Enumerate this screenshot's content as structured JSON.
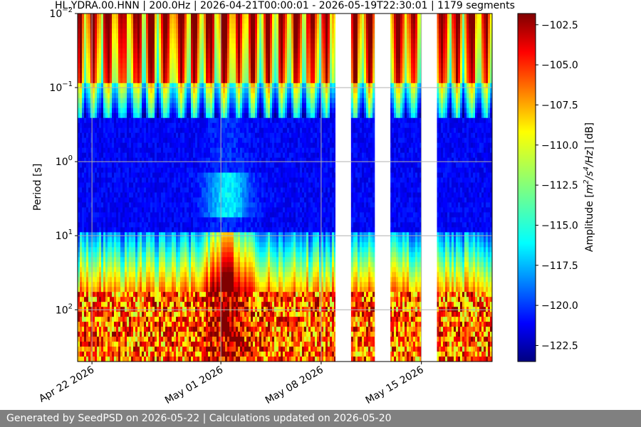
{
  "chart_data": {
    "type": "heatmap",
    "title": "HL.YDRA.00.HNN | 200.0Hz | 2026-04-21T00:00:01 - 2026-05-19T22:30:01 | 1179 segments",
    "ylabel": "Period [s]",
    "y_scale": "log",
    "y_axis_inverted": true,
    "y_range_s": [
      0.01,
      500
    ],
    "x_range": [
      "2026-04-21T00:00:01",
      "2026-05-19T22:30:01"
    ],
    "grid": true,
    "x_ticks": [
      {
        "date": "2026-04-22",
        "label": "Apr 22 2026"
      },
      {
        "date": "2026-05-01",
        "label": "May 01 2026"
      },
      {
        "date": "2026-05-08",
        "label": "May 08 2026"
      },
      {
        "date": "2026-05-15",
        "label": "May 15 2026"
      }
    ],
    "y_ticks": [
      {
        "value": 0.01,
        "base": "10",
        "exp": "−2"
      },
      {
        "value": 0.1,
        "base": "10",
        "exp": "−1"
      },
      {
        "value": 1,
        "base": "10",
        "exp": "0"
      },
      {
        "value": 10,
        "base": "10",
        "exp": "1"
      },
      {
        "value": 100,
        "base": "10",
        "exp": "2"
      }
    ],
    "colorbar": {
      "label_prefix": "Amplitude [",
      "label_unit_base": "m",
      "label_unit_exp1": "2",
      "label_unit_mid": "/s",
      "label_unit_exp2": "4",
      "label_unit_tail": "/Hz",
      "label_suffix": "] [dB]",
      "colormap": "jet",
      "range_db": [
        -123.5,
        -101.8
      ],
      "ticks": [
        "−102.5",
        "−105.0",
        "−107.5",
        "−110.0",
        "−112.5",
        "−115.0",
        "−117.5",
        "−120.0",
        "−122.5"
      ],
      "tick_values": [
        -102.5,
        -105.0,
        -107.5,
        -110.0,
        -112.5,
        -115.0,
        -117.5,
        -120.0,
        -122.5
      ]
    },
    "data_gaps": [
      {
        "start": "2026-05-09T00:00:00",
        "end": "2026-05-10T02:00:00"
      },
      {
        "start": "2026-05-11T18:00:00",
        "end": "2026-05-12T20:00:00"
      },
      {
        "start": "2026-05-15T00:00:00",
        "end": "2026-05-16T02:00:00"
      }
    ],
    "colors": {
      "gap": "#ffffff",
      "grid": "#b0b0b0"
    }
  },
  "footer": {
    "text": "Generated by SeedPSD on 2026-05-22 | Calculations updated on 2026-05-20"
  }
}
